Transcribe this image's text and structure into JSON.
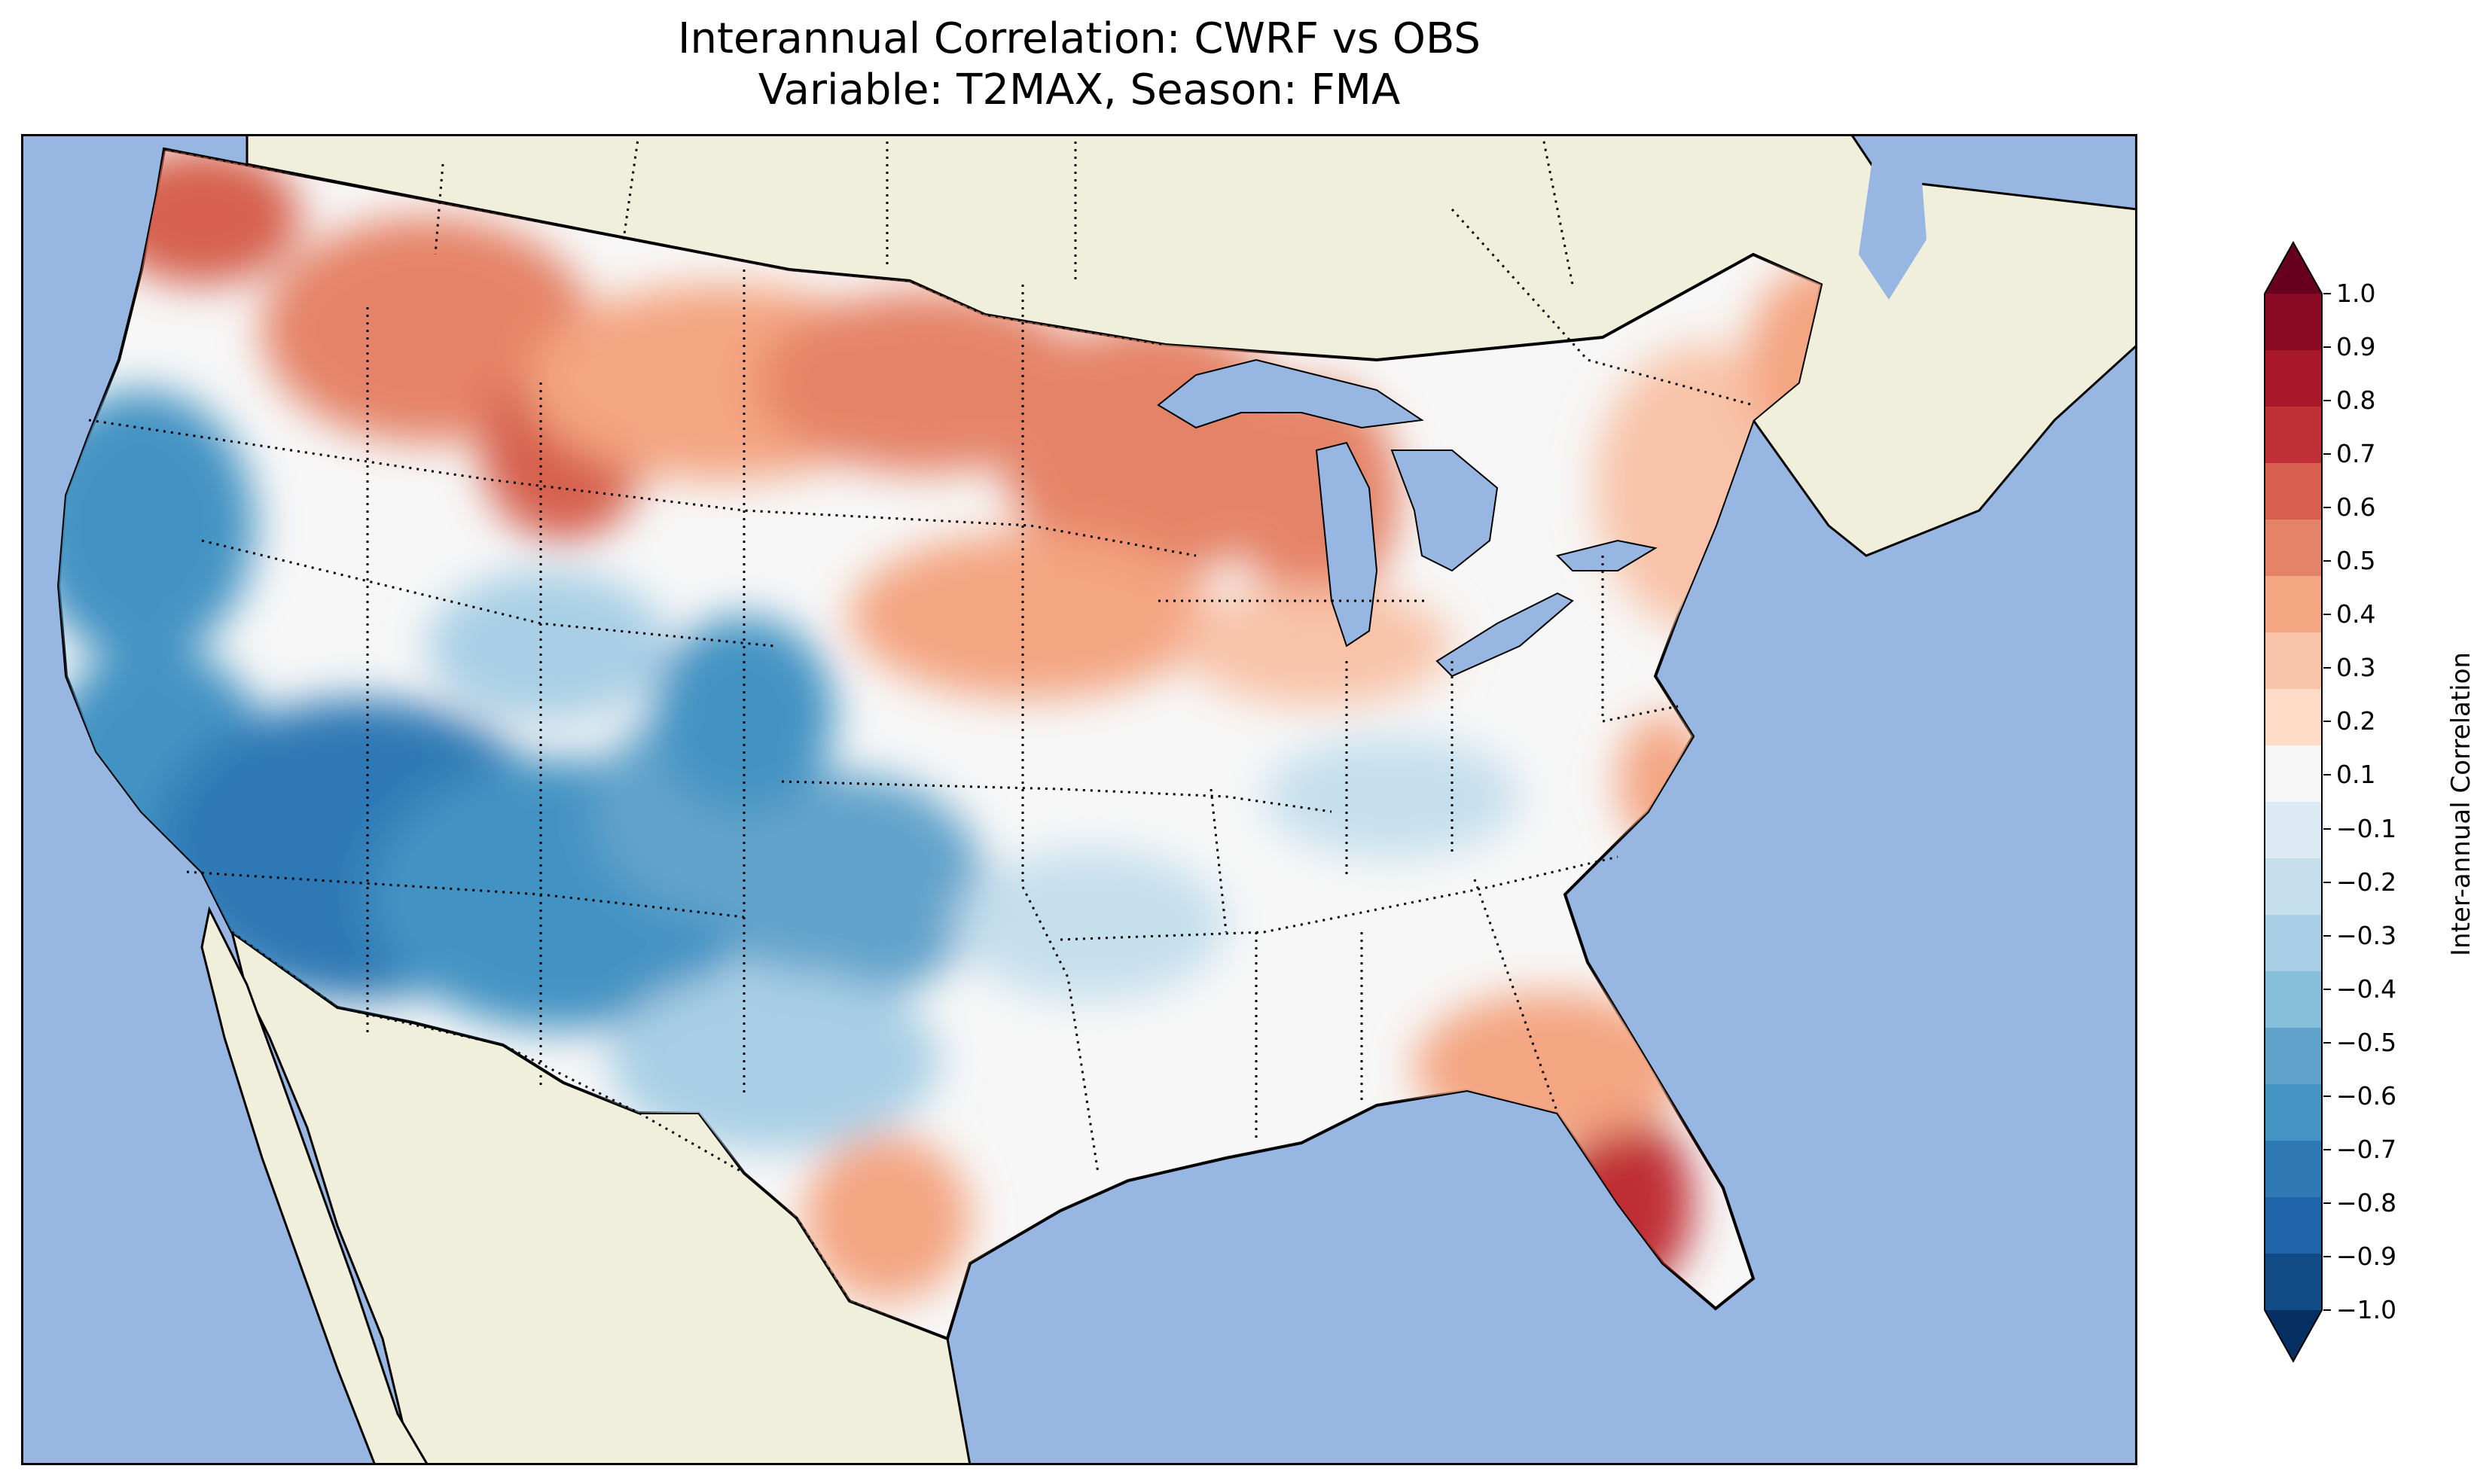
{
  "title": {
    "line1": "Interannual Correlation: CWRF vs OBS",
    "line2": "Variable: T2MAX, Season: FMA"
  },
  "map": {
    "ocean_color": "#97b6e1",
    "land_color": "#efefdb",
    "outline_color": "#000000"
  },
  "colorbar": {
    "label": "Inter-annual Correlation",
    "ticks": [
      "1.0",
      "0.9",
      "0.8",
      "0.7",
      "0.6",
      "0.5",
      "0.4",
      "0.3",
      "0.2",
      "0.1",
      "−0.1",
      "−0.2",
      "−0.3",
      "−0.4",
      "−0.5",
      "−0.6",
      "−0.7",
      "−0.8",
      "−0.9",
      "−1.0"
    ],
    "levels": [
      1.0,
      0.9,
      0.8,
      0.7,
      0.6,
      0.5,
      0.4,
      0.3,
      0.2,
      0.1,
      -0.1,
      -0.2,
      -0.3,
      -0.4,
      -0.5,
      -0.6,
      -0.7,
      -0.8,
      -0.9,
      -1.0
    ],
    "colors": [
      "#67001f",
      "#8a0a24",
      "#a8172a",
      "#bf2f35",
      "#d6604d",
      "#e58368",
      "#f4a582",
      "#f8c3a8",
      "#fddbc7",
      "#f7f7f7",
      "#dcebf3",
      "#c5dfed",
      "#a8cfe5",
      "#87beda",
      "#62a3cb",
      "#4393c3",
      "#2f79b5",
      "#1f63a8",
      "#134b87",
      "#053061"
    ]
  }
}
